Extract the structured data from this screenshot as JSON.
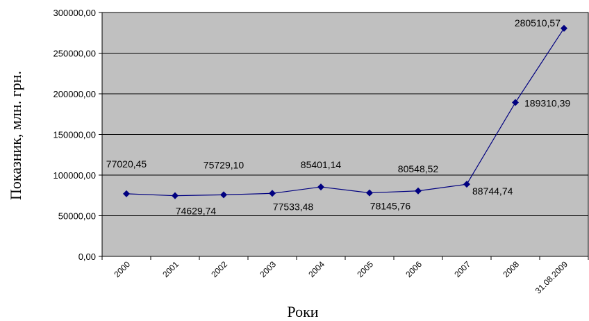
{
  "chart_data": {
    "type": "line",
    "title": "",
    "xlabel": "Роки",
    "ylabel": "Показник, млн. грн.",
    "categories": [
      "2000",
      "2001",
      "2002",
      "2003",
      "2004",
      "2005",
      "2006",
      "2007",
      "2008",
      "31.08.2009"
    ],
    "series": [
      {
        "values": [
          77020.45,
          74629.74,
          75729.1,
          77533.48,
          85401.14,
          78145.76,
          80548.52,
          88744.74,
          189310.39,
          280510.57
        ],
        "labels": [
          "77020,45",
          "74629,74",
          "75729,10",
          "77533,48",
          "85401,14",
          "78145,76",
          "80548,52",
          "88744,74",
          "189310,39",
          "280510,57"
        ],
        "color": "#000080"
      }
    ],
    "yticks": [
      "0,00",
      "50000,00",
      "100000,00",
      "150000,00",
      "200000,00",
      "250000,00",
      "300000,00"
    ],
    "ylim": [
      0,
      300000
    ],
    "grid": true,
    "plot_background": "#c0c0c0",
    "legend": "none"
  }
}
